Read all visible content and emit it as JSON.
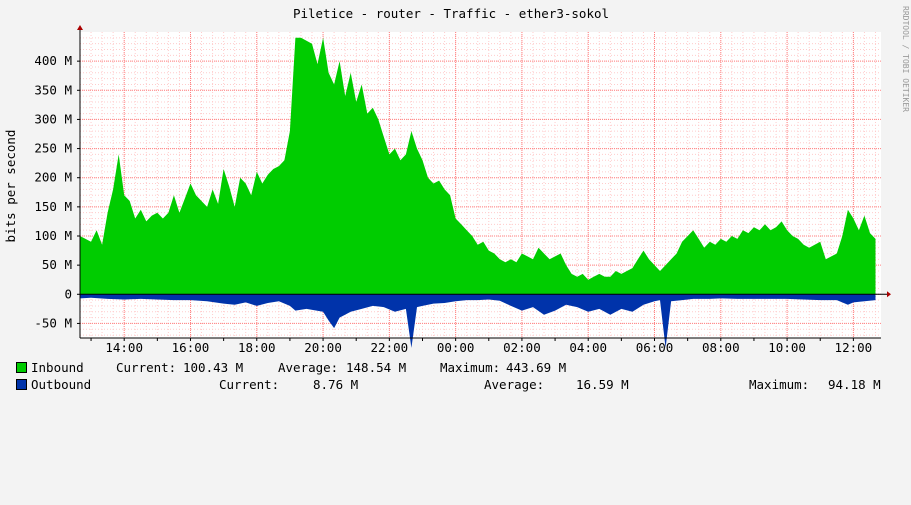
{
  "chart_data": {
    "type": "area",
    "title": "Piletice - router - Traffic - ether3-sokol",
    "ylabel": "bits per second",
    "ylim": [
      -75000000,
      450000000
    ],
    "y_ticks": [
      {
        "value": -50000000,
        "label": "-50 M"
      },
      {
        "value": 0,
        "label": "0"
      },
      {
        "value": 50000000,
        "label": "50 M"
      },
      {
        "value": 100000000,
        "label": "100 M"
      },
      {
        "value": 150000000,
        "label": "150 M"
      },
      {
        "value": 200000000,
        "label": "200 M"
      },
      {
        "value": 250000000,
        "label": "250 M"
      },
      {
        "value": 300000000,
        "label": "300 M"
      },
      {
        "value": 350000000,
        "label": "350 M"
      },
      {
        "value": 400000000,
        "label": "400 M"
      }
    ],
    "x_range": [
      "12:40",
      "12:50"
    ],
    "x_ticks": [
      "14:00",
      "16:00",
      "18:00",
      "20:00",
      "22:00",
      "00:00",
      "02:00",
      "04:00",
      "06:00",
      "08:00",
      "10:00",
      "12:00"
    ],
    "colors": {
      "inbound": "#00cc00",
      "outbound": "#0033aa",
      "grid": "#ff9999"
    },
    "series": [
      {
        "name": "Inbound",
        "points": [
          [
            "12:40",
            100
          ],
          [
            "13:00",
            90
          ],
          [
            "13:10",
            110
          ],
          [
            "13:20",
            85
          ],
          [
            "13:30",
            140
          ],
          [
            "13:40",
            180
          ],
          [
            "13:50",
            240
          ],
          [
            "14:00",
            170
          ],
          [
            "14:10",
            160
          ],
          [
            "14:20",
            130
          ],
          [
            "14:30",
            145
          ],
          [
            "14:40",
            125
          ],
          [
            "14:50",
            135
          ],
          [
            "15:00",
            140
          ],
          [
            "15:10",
            130
          ],
          [
            "15:20",
            140
          ],
          [
            "15:30",
            170
          ],
          [
            "15:40",
            140
          ],
          [
            "15:50",
            165
          ],
          [
            "16:00",
            190
          ],
          [
            "16:10",
            170
          ],
          [
            "16:20",
            160
          ],
          [
            "16:30",
            150
          ],
          [
            "16:40",
            180
          ],
          [
            "16:50",
            155
          ],
          [
            "17:00",
            215
          ],
          [
            "17:10",
            185
          ],
          [
            "17:20",
            150
          ],
          [
            "17:30",
            200
          ],
          [
            "17:40",
            190
          ],
          [
            "17:50",
            170
          ],
          [
            "18:00",
            210
          ],
          [
            "18:10",
            190
          ],
          [
            "18:20",
            205
          ],
          [
            "18:30",
            215
          ],
          [
            "18:40",
            220
          ],
          [
            "18:50",
            230
          ],
          [
            "19:00",
            280
          ],
          [
            "19:10",
            440
          ],
          [
            "19:20",
            440
          ],
          [
            "19:30",
            435
          ],
          [
            "19:40",
            430
          ],
          [
            "19:50",
            395
          ],
          [
            "20:00",
            440
          ],
          [
            "20:10",
            380
          ],
          [
            "20:20",
            360
          ],
          [
            "20:30",
            400
          ],
          [
            "20:40",
            340
          ],
          [
            "20:50",
            380
          ],
          [
            "21:00",
            330
          ],
          [
            "21:10",
            360
          ],
          [
            "21:20",
            310
          ],
          [
            "21:30",
            320
          ],
          [
            "21:40",
            300
          ],
          [
            "21:50",
            270
          ],
          [
            "22:00",
            240
          ],
          [
            "22:10",
            250
          ],
          [
            "22:20",
            230
          ],
          [
            "22:30",
            240
          ],
          [
            "22:40",
            280
          ],
          [
            "22:50",
            250
          ],
          [
            "23:00",
            230
          ],
          [
            "23:10",
            200
          ],
          [
            "23:20",
            190
          ],
          [
            "23:30",
            195
          ],
          [
            "23:40",
            180
          ],
          [
            "23:50",
            170
          ],
          [
            "00:00",
            130
          ],
          [
            "00:10",
            120
          ],
          [
            "00:20",
            110
          ],
          [
            "00:30",
            100
          ],
          [
            "00:40",
            85
          ],
          [
            "00:50",
            90
          ],
          [
            "01:00",
            75
          ],
          [
            "01:10",
            70
          ],
          [
            "01:20",
            60
          ],
          [
            "01:30",
            55
          ],
          [
            "01:40",
            60
          ],
          [
            "01:50",
            55
          ],
          [
            "02:00",
            70
          ],
          [
            "02:10",
            65
          ],
          [
            "02:20",
            60
          ],
          [
            "02:30",
            80
          ],
          [
            "02:40",
            70
          ],
          [
            "02:50",
            60
          ],
          [
            "03:00",
            65
          ],
          [
            "03:10",
            70
          ],
          [
            "03:20",
            50
          ],
          [
            "03:30",
            35
          ],
          [
            "03:40",
            30
          ],
          [
            "03:50",
            35
          ],
          [
            "04:00",
            25
          ],
          [
            "04:10",
            30
          ],
          [
            "04:20",
            35
          ],
          [
            "04:30",
            30
          ],
          [
            "04:40",
            30
          ],
          [
            "04:50",
            40
          ],
          [
            "05:00",
            35
          ],
          [
            "05:10",
            40
          ],
          [
            "05:20",
            45
          ],
          [
            "05:30",
            60
          ],
          [
            "05:40",
            75
          ],
          [
            "05:50",
            60
          ],
          [
            "06:00",
            50
          ],
          [
            "06:10",
            40
          ],
          [
            "06:20",
            50
          ],
          [
            "06:30",
            60
          ],
          [
            "06:40",
            70
          ],
          [
            "06:50",
            90
          ],
          [
            "07:00",
            100
          ],
          [
            "07:10",
            110
          ],
          [
            "07:20",
            95
          ],
          [
            "07:30",
            80
          ],
          [
            "07:40",
            90
          ],
          [
            "07:50",
            85
          ],
          [
            "08:00",
            95
          ],
          [
            "08:10",
            90
          ],
          [
            "08:20",
            100
          ],
          [
            "08:30",
            95
          ],
          [
            "08:40",
            110
          ],
          [
            "08:50",
            105
          ],
          [
            "09:00",
            115
          ],
          [
            "09:10",
            110
          ],
          [
            "09:20",
            120
          ],
          [
            "09:30",
            110
          ],
          [
            "09:40",
            115
          ],
          [
            "09:50",
            125
          ],
          [
            "10:00",
            110
          ],
          [
            "10:10",
            100
          ],
          [
            "10:20",
            95
          ],
          [
            "10:30",
            85
          ],
          [
            "10:40",
            80
          ],
          [
            "10:50",
            85
          ],
          [
            "11:00",
            90
          ],
          [
            "11:10",
            60
          ],
          [
            "11:20",
            65
          ],
          [
            "11:30",
            70
          ],
          [
            "11:40",
            100
          ],
          [
            "11:50",
            145
          ],
          [
            "12:00",
            130
          ],
          [
            "12:10",
            110
          ],
          [
            "12:20",
            135
          ],
          [
            "12:30",
            105
          ],
          [
            "12:40",
            95
          ]
        ]
      },
      {
        "name": "Outbound",
        "points": [
          [
            "12:40",
            -7
          ],
          [
            "13:00",
            -6
          ],
          [
            "13:30",
            -8
          ],
          [
            "14:00",
            -9
          ],
          [
            "14:30",
            -8
          ],
          [
            "15:00",
            -9
          ],
          [
            "15:30",
            -10
          ],
          [
            "16:00",
            -10
          ],
          [
            "16:30",
            -12
          ],
          [
            "17:00",
            -16
          ],
          [
            "17:20",
            -18
          ],
          [
            "17:40",
            -14
          ],
          [
            "18:00",
            -20
          ],
          [
            "18:20",
            -15
          ],
          [
            "18:40",
            -12
          ],
          [
            "19:00",
            -20
          ],
          [
            "19:10",
            -28
          ],
          [
            "19:30",
            -25
          ],
          [
            "20:00",
            -30
          ],
          [
            "20:10",
            -45
          ],
          [
            "20:20",
            -58
          ],
          [
            "20:30",
            -40
          ],
          [
            "20:50",
            -30
          ],
          [
            "21:10",
            -25
          ],
          [
            "21:30",
            -20
          ],
          [
            "21:50",
            -22
          ],
          [
            "22:10",
            -30
          ],
          [
            "22:30",
            -25
          ],
          [
            "22:40",
            -92
          ],
          [
            "22:50",
            -22
          ],
          [
            "23:00",
            -20
          ],
          [
            "23:20",
            -16
          ],
          [
            "23:40",
            -15
          ],
          [
            "00:00",
            -12
          ],
          [
            "00:20",
            -10
          ],
          [
            "00:40",
            -10
          ],
          [
            "01:00",
            -9
          ],
          [
            "01:20",
            -11
          ],
          [
            "01:40",
            -20
          ],
          [
            "02:00",
            -28
          ],
          [
            "02:20",
            -22
          ],
          [
            "02:40",
            -35
          ],
          [
            "03:00",
            -28
          ],
          [
            "03:20",
            -18
          ],
          [
            "03:40",
            -22
          ],
          [
            "04:00",
            -30
          ],
          [
            "04:20",
            -25
          ],
          [
            "04:40",
            -35
          ],
          [
            "05:00",
            -25
          ],
          [
            "05:20",
            -30
          ],
          [
            "05:40",
            -18
          ],
          [
            "06:00",
            -12
          ],
          [
            "06:10",
            -10
          ],
          [
            "06:20",
            -92
          ],
          [
            "06:30",
            -12
          ],
          [
            "06:50",
            -10
          ],
          [
            "07:10",
            -8
          ],
          [
            "07:40",
            -8
          ],
          [
            "08:00",
            -7
          ],
          [
            "08:30",
            -8
          ],
          [
            "09:00",
            -8
          ],
          [
            "09:30",
            -8
          ],
          [
            "10:00",
            -8
          ],
          [
            "10:30",
            -9
          ],
          [
            "11:00",
            -10
          ],
          [
            "11:30",
            -10
          ],
          [
            "11:50",
            -18
          ],
          [
            "12:00",
            -14
          ],
          [
            "12:20",
            -12
          ],
          [
            "12:40",
            -10
          ]
        ]
      }
    ]
  },
  "legend": [
    {
      "name": "Inbound",
      "current_label": "Current:",
      "current": "100.43 M",
      "average_label": "Average:",
      "average": "148.54 M",
      "maximum_label": "Maximum:",
      "maximum": "443.69 M"
    },
    {
      "name": "Outbound",
      "current_label": "Current:",
      "current": "8.76 M",
      "average_label": "Average:",
      "average": "16.59 M",
      "maximum_label": "Maximum:",
      "maximum": "94.18 M"
    }
  ],
  "credit": "RRDTOOL / TOBI OETIKER"
}
